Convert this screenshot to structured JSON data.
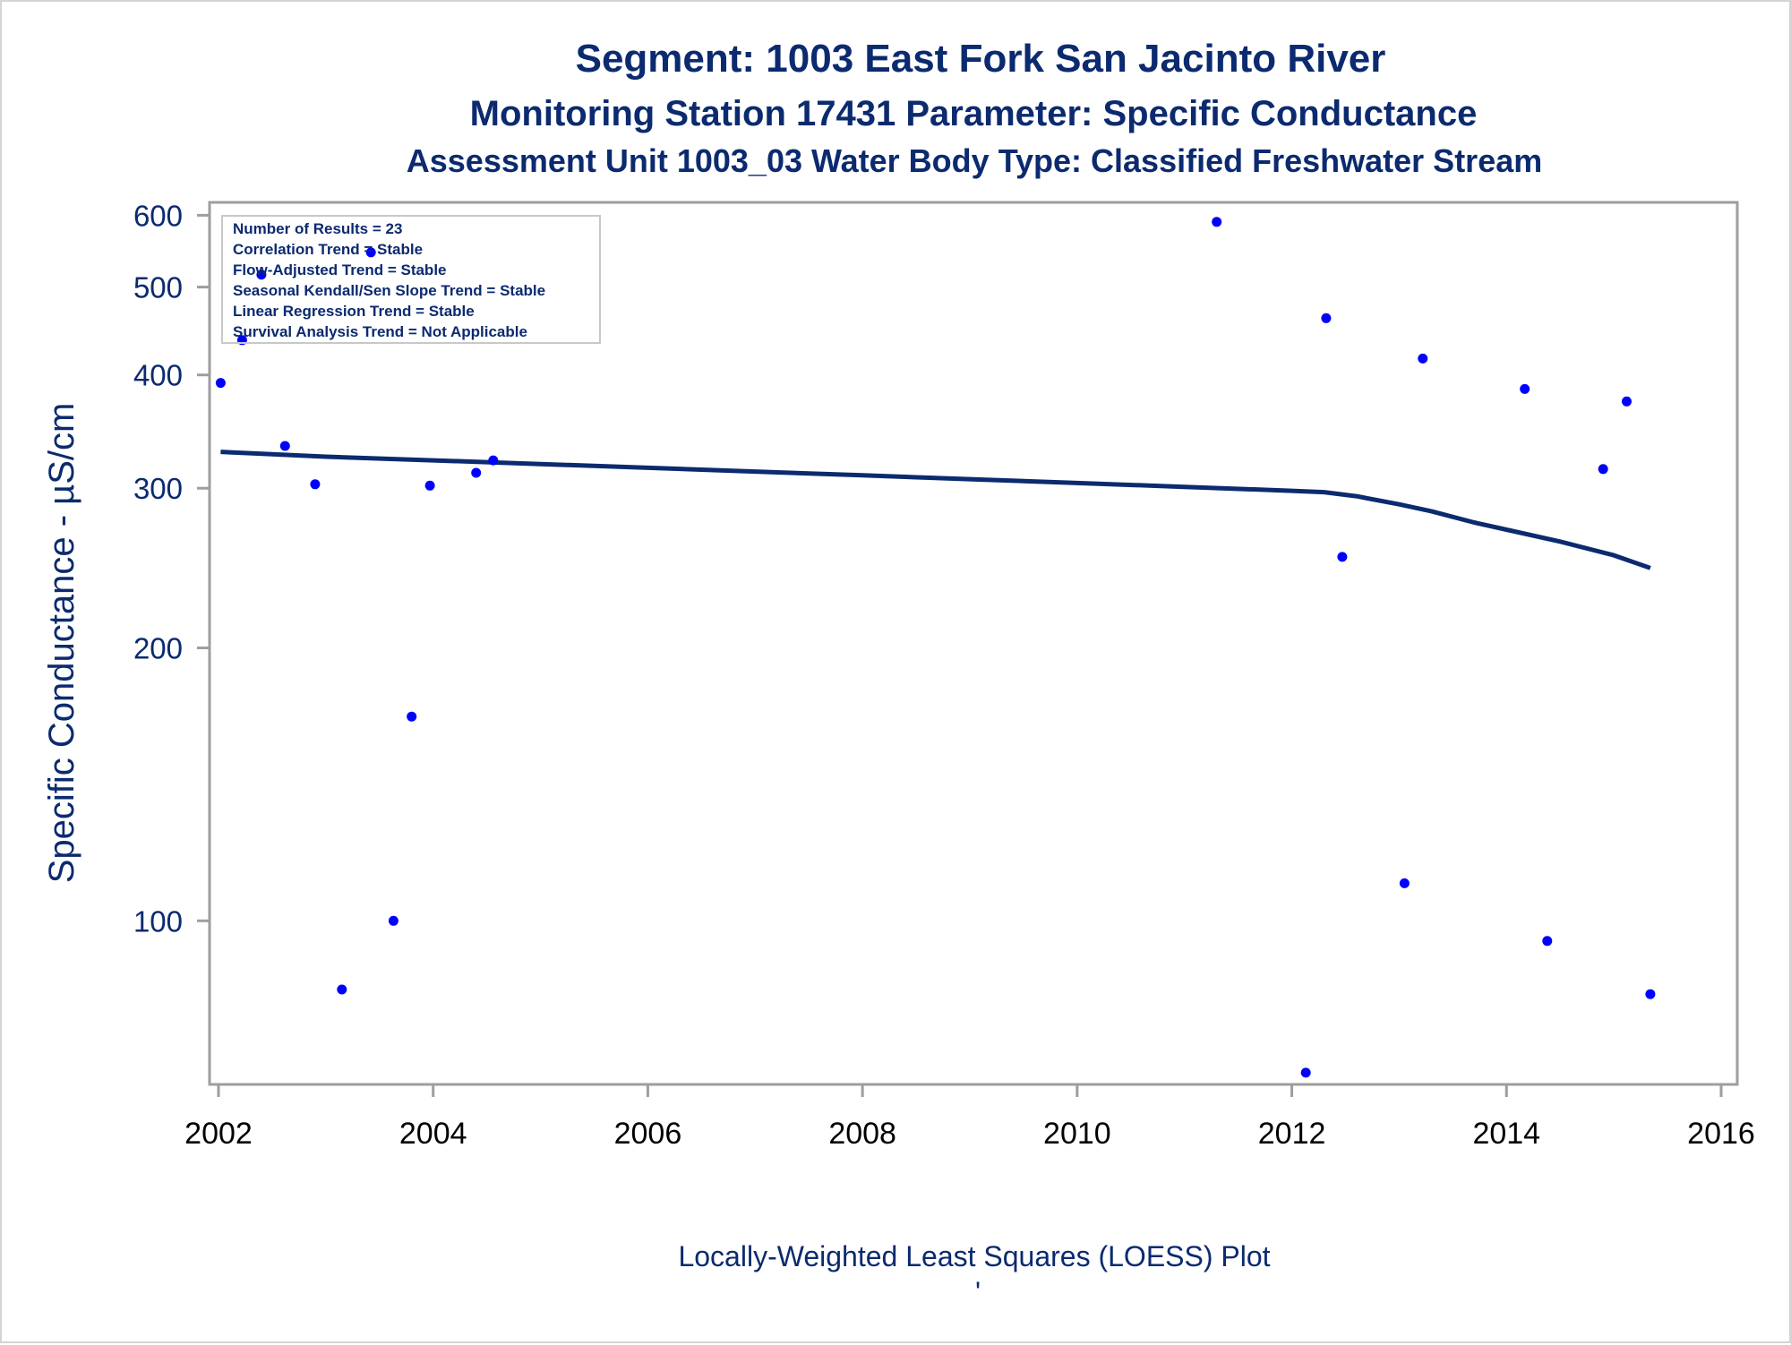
{
  "titles": [
    "Segment: 1003  East Fork San Jacinto River",
    "Monitoring Station 17431 Parameter: Specific Conductance",
    "Assessment Unit 1003_03   Water Body Type: Classified Freshwater Stream"
  ],
  "footnote": "Locally-Weighted Least Squares (LOESS) Plot",
  "footnote_mark": "'",
  "colors": {
    "title": "#0b2a6f",
    "points": "#0000ff",
    "trend_line": "#0b2a6f",
    "axis": "#9e9e9e"
  },
  "chart_data": {
    "type": "scatter",
    "ylabel": "Specific Conductance -  µS/cm",
    "xlabel": "",
    "y_scale": "log",
    "xlim": [
      2002,
      2016
    ],
    "ylim": [
      66,
      620
    ],
    "x_ticks": [
      2002,
      2004,
      2006,
      2008,
      2010,
      2012,
      2014,
      2016
    ],
    "y_ticks": [
      100,
      200,
      300,
      400,
      500,
      600
    ],
    "legend_position": "top-left",
    "legend_lines": [
      "Number of Results = 23",
      "Correlation Trend = Stable",
      "Flow-Adjusted Trend = Stable",
      "Seasonal Kendall/Sen Slope Trend = Stable",
      "Linear Regression Trend = Stable",
      "Survival Analysis Trend = Not Applicable"
    ],
    "series": [
      {
        "type": "scatter",
        "points": [
          {
            "x": 2002.02,
            "y": 392
          },
          {
            "x": 2002.22,
            "y": 437
          },
          {
            "x": 2002.4,
            "y": 516
          },
          {
            "x": 2002.62,
            "y": 334
          },
          {
            "x": 2002.9,
            "y": 303
          },
          {
            "x": 2003.15,
            "y": 84
          },
          {
            "x": 2003.42,
            "y": 546
          },
          {
            "x": 2003.63,
            "y": 100
          },
          {
            "x": 2003.8,
            "y": 168
          },
          {
            "x": 2003.97,
            "y": 302
          },
          {
            "x": 2004.4,
            "y": 312
          },
          {
            "x": 2004.56,
            "y": 322
          },
          {
            "x": 2011.3,
            "y": 590
          },
          {
            "x": 2012.13,
            "y": 68
          },
          {
            "x": 2012.32,
            "y": 462
          },
          {
            "x": 2012.47,
            "y": 252
          },
          {
            "x": 2013.05,
            "y": 110
          },
          {
            "x": 2013.22,
            "y": 417
          },
          {
            "x": 2014.17,
            "y": 386
          },
          {
            "x": 2014.38,
            "y": 95
          },
          {
            "x": 2014.9,
            "y": 315
          },
          {
            "x": 2015.12,
            "y": 374
          },
          {
            "x": 2015.34,
            "y": 83
          }
        ]
      },
      {
        "type": "line",
        "points": [
          {
            "x": 2002.02,
            "y": 329
          },
          {
            "x": 2003.0,
            "y": 325
          },
          {
            "x": 2004.0,
            "y": 322
          },
          {
            "x": 2005.0,
            "y": 319
          },
          {
            "x": 2006.0,
            "y": 316
          },
          {
            "x": 2007.0,
            "y": 313
          },
          {
            "x": 2008.0,
            "y": 310
          },
          {
            "x": 2009.0,
            "y": 307
          },
          {
            "x": 2010.0,
            "y": 304
          },
          {
            "x": 2011.0,
            "y": 301
          },
          {
            "x": 2012.0,
            "y": 298
          },
          {
            "x": 2012.3,
            "y": 297
          },
          {
            "x": 2012.6,
            "y": 294
          },
          {
            "x": 2013.0,
            "y": 288
          },
          {
            "x": 2013.3,
            "y": 283
          },
          {
            "x": 2013.7,
            "y": 275
          },
          {
            "x": 2014.0,
            "y": 270
          },
          {
            "x": 2014.5,
            "y": 262
          },
          {
            "x": 2015.0,
            "y": 253
          },
          {
            "x": 2015.34,
            "y": 245
          }
        ]
      }
    ]
  }
}
